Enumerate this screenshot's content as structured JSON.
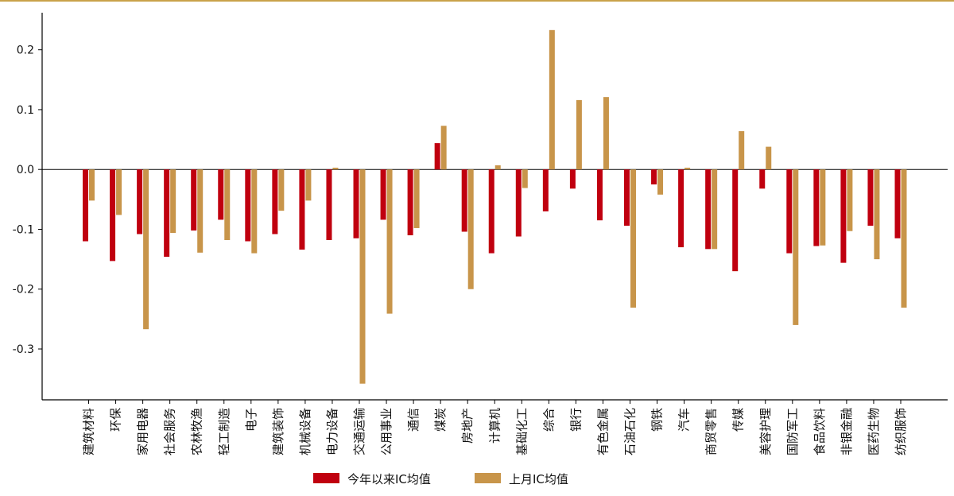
{
  "chart_data": {
    "type": "bar",
    "categories": [
      "建筑材料",
      "环保",
      "家用电器",
      "社会服务",
      "农林牧渔",
      "轻工制造",
      "电子",
      "建筑装饰",
      "机械设备",
      "电力设备",
      "交通运输",
      "公用事业",
      "通信",
      "煤炭",
      "房地产",
      "计算机",
      "基础化工",
      "综合",
      "银行",
      "有色金属",
      "石油石化",
      "钢铁",
      "汽车",
      "商贸零售",
      "传媒",
      "美容护理",
      "国防军工",
      "食品饮料",
      "非银金融",
      "医药生物",
      "纺织服饰"
    ],
    "series": [
      {
        "name": "今年以来IC均值",
        "color": "#c0000f",
        "values": [
          -0.12,
          -0.153,
          -0.108,
          -0.146,
          -0.102,
          -0.084,
          -0.12,
          -0.108,
          -0.134,
          -0.118,
          -0.115,
          -0.084,
          -0.11,
          0.044,
          -0.104,
          -0.14,
          -0.112,
          -0.07,
          -0.032,
          -0.085,
          -0.094,
          -0.025,
          -0.13,
          -0.133,
          -0.17,
          -0.032,
          -0.14,
          -0.128,
          -0.156,
          -0.094,
          -0.115
        ]
      },
      {
        "name": "上月IC均值",
        "color": "#c8954a",
        "values": [
          -0.052,
          -0.076,
          -0.267,
          -0.106,
          -0.139,
          -0.118,
          -0.14,
          -0.069,
          -0.052,
          0.003,
          -0.358,
          -0.241,
          -0.098,
          0.073,
          -0.2,
          0.007,
          -0.031,
          0.233,
          0.116,
          0.121,
          -0.231,
          -0.042,
          0.003,
          -0.133,
          0.064,
          0.038,
          -0.26,
          -0.127,
          -0.103,
          -0.15,
          -0.231
        ]
      }
    ],
    "yticks": [
      "0.2",
      "0.1",
      "0.0",
      "-0.1",
      "-0.2",
      "-0.3"
    ],
    "ylim": [
      -0.385,
      0.262
    ],
    "legend": "bottom-center"
  }
}
